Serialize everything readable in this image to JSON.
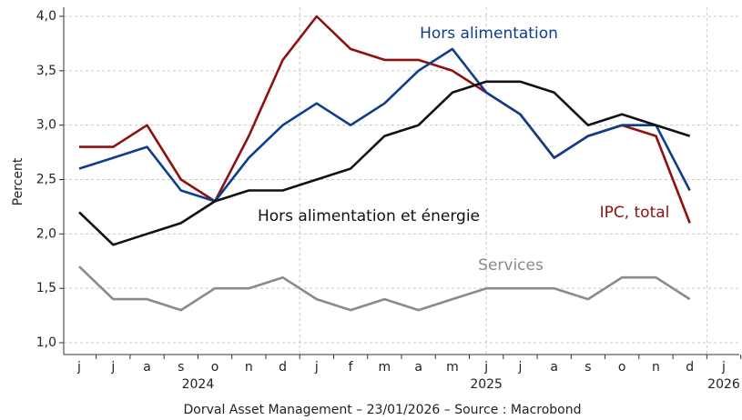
{
  "chart_data": {
    "type": "line",
    "y_label": "Percent",
    "source": "Dorval Asset Management – 23/01/2026 –   Source : Macrobond",
    "categories": [
      "j",
      "j",
      "a",
      "s",
      "o",
      "n",
      "d",
      "j",
      "f",
      "m",
      "a",
      "m",
      "j",
      "j",
      "a",
      "s",
      "o",
      "n",
      "d",
      "j"
    ],
    "year_labels": [
      "2024",
      "2025",
      "2026"
    ],
    "series": [
      {
        "name": "IPC, total",
        "color": "#8e1010",
        "values": [
          2.8,
          2.8,
          3.0,
          2.5,
          2.3,
          2.9,
          3.6,
          4.0,
          3.7,
          3.6,
          3.6,
          3.5,
          3.3,
          3.1,
          2.7,
          2.9,
          3.0,
          2.9,
          2.1,
          null
        ]
      },
      {
        "name": "Hors alimentation",
        "color": "#0d3d8e",
        "values": [
          2.6,
          2.7,
          2.8,
          2.4,
          2.3,
          2.7,
          3.0,
          3.2,
          3.0,
          3.2,
          3.5,
          3.7,
          3.3,
          3.1,
          2.7,
          2.9,
          3.0,
          3.0,
          2.4,
          null
        ]
      },
      {
        "name": "Hors alimentation et énergie",
        "color": "#111111",
        "values": [
          2.2,
          1.9,
          2.0,
          2.1,
          2.3,
          2.4,
          2.4,
          2.5,
          2.6,
          2.9,
          3.0,
          3.3,
          3.4,
          3.4,
          3.3,
          3.0,
          3.1,
          3.0,
          2.9,
          null
        ]
      },
      {
        "name": "Services",
        "color": "#8a8a8a",
        "values": [
          1.7,
          1.4,
          1.4,
          1.3,
          1.5,
          1.5,
          1.6,
          1.4,
          1.3,
          1.4,
          1.3,
          1.4,
          1.5,
          1.5,
          1.5,
          1.4,
          1.6,
          1.6,
          1.4,
          null
        ]
      }
    ],
    "ylim": [
      1.0,
      4.0
    ],
    "yticks": [
      {
        "value": 1.0,
        "label": "1,0"
      },
      {
        "value": 1.5,
        "label": "1,5"
      },
      {
        "value": 2.0,
        "label": "2,0"
      },
      {
        "value": 2.5,
        "label": "2,5"
      },
      {
        "value": 3.0,
        "label": "3,0"
      },
      {
        "value": 3.5,
        "label": "3,5"
      },
      {
        "value": 4.0,
        "label": "4,0"
      }
    ],
    "grid": true
  }
}
